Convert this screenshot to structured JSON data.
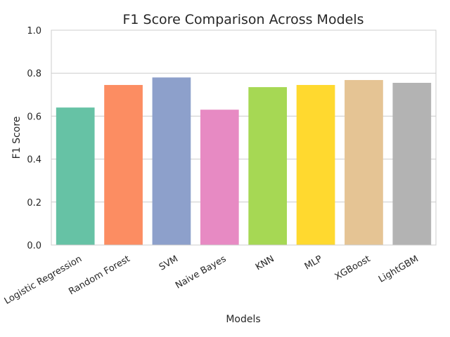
{
  "chart_data": {
    "type": "bar",
    "title": "F1 Score Comparison Across Models",
    "xlabel": "Models",
    "ylabel": "F1 Score",
    "ylim": [
      0,
      1.0
    ],
    "yticks": [
      "0.0",
      "0.2",
      "0.4",
      "0.6",
      "0.8",
      "1.0"
    ],
    "grid": "horizontal",
    "categories": [
      "Logistic Regression",
      "Random Forest",
      "SVM",
      "Naive Bayes",
      "KNN",
      "MLP",
      "XGBoost",
      "LightGBM"
    ],
    "values": [
      0.64,
      0.745,
      0.78,
      0.63,
      0.735,
      0.745,
      0.768,
      0.755
    ],
    "colors": [
      "#66c2a5",
      "#fc8d62",
      "#8da0cb",
      "#e78ac3",
      "#a6d854",
      "#ffd92f",
      "#e5c494",
      "#b3b3b3"
    ]
  }
}
